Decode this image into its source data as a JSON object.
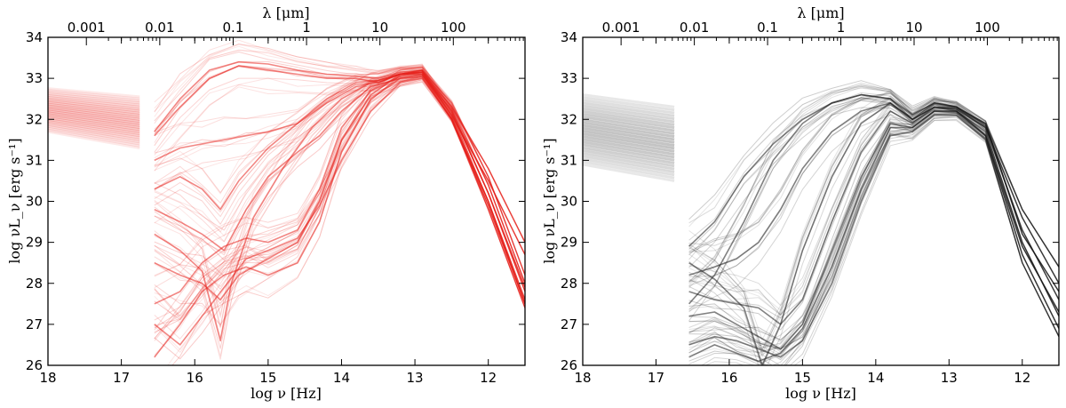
{
  "chart_data": [
    {
      "type": "line",
      "panel": "left",
      "color": "#e8231d",
      "xlabel": "log ν [Hz]",
      "ylabel": "log νL_ν [erg s⁻¹]",
      "top_xlabel": "λ [μm]",
      "xlim": [
        18,
        11.5
      ],
      "ylim": [
        26,
        34
      ],
      "x_ticks": [
        "18",
        "17",
        "16",
        "15",
        "14",
        "13",
        "12"
      ],
      "y_ticks": [
        "26",
        "27",
        "28",
        "29",
        "30",
        "31",
        "32",
        "33",
        "34"
      ],
      "top_ticks": [
        "0.001",
        "0.01",
        "0.1",
        "1",
        "10",
        "100"
      ],
      "xray_band": {
        "x": [
          18,
          16.75
        ],
        "y_left": [
          31.7,
          32.75
        ],
        "y_right": [
          31.3,
          32.55
        ]
      },
      "series": [
        {
          "x": [
            16.55,
            16.2,
            15.8,
            15.4,
            15.0,
            14.6,
            14.2,
            13.8,
            13.5,
            13.2,
            12.9,
            12.5,
            12.0,
            11.5
          ],
          "y": [
            31.7,
            32.5,
            33.2,
            33.4,
            33.35,
            33.2,
            33.1,
            33.05,
            33.0,
            33.15,
            33.2,
            32.3,
            30.8,
            29.0
          ]
        },
        {
          "x": [
            16.55,
            16.2,
            15.8,
            15.4,
            15.0,
            14.6,
            14.2,
            13.8,
            13.5,
            13.2,
            12.9,
            12.5,
            12.0,
            11.5
          ],
          "y": [
            31.6,
            32.3,
            33.0,
            33.3,
            33.2,
            33.1,
            33.0,
            33.0,
            32.9,
            33.1,
            33.15,
            32.1,
            30.5,
            28.7
          ]
        },
        {
          "x": [
            16.55,
            16.2,
            15.9,
            15.65,
            15.4,
            15.0,
            14.6,
            14.2,
            13.8,
            13.5,
            13.2,
            12.9,
            12.5,
            12.0,
            11.5
          ],
          "y": [
            30.3,
            30.6,
            30.3,
            29.8,
            30.5,
            31.3,
            31.9,
            32.5,
            32.9,
            32.95,
            33.1,
            33.1,
            32.0,
            30.0,
            27.5
          ]
        },
        {
          "x": [
            16.55,
            16.2,
            15.9,
            15.65,
            15.5,
            15.2,
            14.8,
            14.4,
            14.0,
            13.6,
            13.2,
            12.9,
            12.5,
            12.0,
            11.5
          ],
          "y": [
            29.2,
            28.8,
            28.3,
            26.6,
            28.0,
            29.6,
            30.8,
            31.8,
            32.5,
            32.9,
            33.1,
            33.2,
            32.2,
            30.2,
            27.9
          ]
        },
        {
          "x": [
            16.55,
            16.2,
            15.9,
            15.65,
            15.4,
            15.0,
            14.6,
            14.3,
            14.0,
            13.6,
            13.2,
            12.9,
            12.5,
            12.0,
            11.5
          ],
          "y": [
            28.5,
            28.2,
            28.0,
            27.6,
            28.2,
            28.6,
            29.0,
            30.0,
            31.5,
            32.6,
            33.1,
            33.2,
            32.4,
            30.6,
            28.2
          ]
        },
        {
          "x": [
            16.55,
            16.2,
            15.9,
            15.6,
            15.3,
            15.0,
            14.6,
            14.3,
            14.0,
            13.6,
            13.2,
            12.9,
            12.5,
            12.0,
            11.5
          ],
          "y": [
            27.5,
            27.8,
            28.5,
            28.9,
            29.1,
            29.0,
            29.3,
            30.3,
            31.8,
            32.7,
            33.05,
            33.15,
            32.3,
            30.4,
            28.0
          ]
        },
        {
          "x": [
            16.55,
            16.2,
            15.9,
            15.6,
            15.3,
            15.0,
            14.6,
            14.3,
            14.0,
            13.6,
            13.2,
            12.9,
            12.5,
            12.0,
            11.5
          ],
          "y": [
            26.2,
            27.0,
            27.8,
            28.2,
            28.4,
            28.2,
            28.5,
            29.5,
            31.2,
            32.5,
            33.0,
            33.1,
            32.1,
            30.0,
            27.6
          ]
        },
        {
          "x": [
            16.55,
            16.2,
            15.9,
            15.6,
            15.3,
            15.0,
            14.6,
            14.3,
            14.0,
            13.6,
            13.2,
            12.9,
            12.5,
            12.0,
            11.5
          ],
          "y": [
            29.8,
            29.5,
            29.2,
            28.8,
            29.8,
            30.6,
            31.2,
            31.6,
            32.2,
            32.8,
            33.0,
            33.05,
            32.0,
            29.9,
            27.5
          ]
        },
        {
          "x": [
            16.55,
            16.2,
            15.9,
            15.6,
            15.3,
            15.0,
            14.6,
            14.3,
            14.0,
            13.6,
            13.2,
            12.9,
            12.5,
            12.0,
            11.5
          ],
          "y": [
            27.0,
            26.5,
            27.2,
            27.9,
            28.6,
            28.8,
            29.1,
            29.9,
            31.0,
            32.2,
            32.9,
            33.0,
            32.0,
            29.8,
            27.4
          ]
        },
        {
          "x": [
            16.55,
            16.2,
            15.9,
            15.6,
            15.3,
            15.0,
            14.6,
            14.2,
            13.8,
            13.5,
            13.2,
            12.9,
            12.5,
            12.0,
            11.5
          ],
          "y": [
            31.0,
            31.3,
            31.4,
            31.5,
            31.6,
            31.7,
            31.9,
            32.4,
            32.8,
            32.9,
            33.1,
            33.15,
            32.2,
            30.2,
            27.8
          ]
        }
      ]
    },
    {
      "type": "line",
      "panel": "right",
      "color": "#1a1a1a",
      "xlabel": "log ν [Hz]",
      "ylabel": "log νL_ν [erg s⁻¹]",
      "top_xlabel": "λ [μm]",
      "xlim": [
        18,
        11.5
      ],
      "ylim": [
        26,
        34
      ],
      "x_ticks": [
        "18",
        "17",
        "16",
        "15",
        "14",
        "13",
        "12"
      ],
      "y_ticks": [
        "26",
        "27",
        "28",
        "29",
        "30",
        "31",
        "32",
        "33",
        "34"
      ],
      "top_ticks": [
        "0.001",
        "0.01",
        "0.1",
        "1",
        "10",
        "100"
      ],
      "xray_band": {
        "x": [
          18,
          16.75
        ],
        "y_left": [
          30.9,
          32.6
        ],
        "y_right": [
          30.5,
          32.3
        ]
      },
      "series": [
        {
          "x": [
            16.55,
            16.2,
            15.8,
            15.4,
            15.0,
            14.6,
            14.2,
            13.8,
            13.5,
            13.2,
            12.9,
            12.5,
            12.0,
            11.5
          ],
          "y": [
            28.9,
            29.5,
            30.6,
            31.4,
            32.0,
            32.4,
            32.6,
            32.5,
            32.1,
            32.4,
            32.3,
            31.9,
            29.2,
            27.8
          ]
        },
        {
          "x": [
            16.55,
            16.2,
            15.8,
            15.4,
            15.0,
            14.6,
            14.2,
            13.8,
            13.5,
            13.2,
            12.9,
            12.5,
            12.0,
            11.5
          ],
          "y": [
            27.5,
            28.2,
            29.5,
            31.0,
            31.9,
            32.4,
            32.6,
            32.5,
            32.0,
            32.4,
            32.3,
            31.8,
            29.6,
            28.0
          ]
        },
        {
          "x": [
            16.55,
            16.2,
            15.8,
            15.55,
            15.3,
            15.0,
            14.6,
            14.2,
            13.8,
            13.5,
            13.2,
            12.9,
            12.5,
            12.0,
            11.5
          ],
          "y": [
            28.5,
            28.1,
            27.4,
            26.0,
            27.0,
            28.8,
            30.6,
            31.9,
            32.4,
            32.0,
            32.3,
            32.25,
            31.8,
            29.3,
            27.6
          ]
        },
        {
          "x": [
            16.55,
            16.2,
            15.9,
            15.6,
            15.3,
            15.0,
            14.6,
            14.2,
            13.8,
            13.5,
            13.2,
            12.9,
            12.5,
            12.0,
            11.5
          ],
          "y": [
            27.8,
            27.6,
            27.5,
            27.4,
            27.0,
            27.6,
            29.5,
            31.2,
            32.2,
            31.9,
            32.3,
            32.2,
            31.7,
            29.0,
            27.2
          ]
        },
        {
          "x": [
            16.55,
            16.2,
            15.9,
            15.6,
            15.3,
            15.0,
            14.6,
            14.2,
            13.8,
            13.5,
            13.2,
            12.9,
            12.5,
            12.0,
            11.5
          ],
          "y": [
            27.2,
            27.3,
            27.0,
            26.7,
            26.4,
            27.0,
            28.8,
            30.6,
            31.9,
            31.8,
            32.2,
            32.2,
            31.6,
            28.7,
            26.9
          ]
        },
        {
          "x": [
            16.55,
            16.2,
            15.9,
            15.6,
            15.3,
            15.0,
            14.6,
            14.2,
            13.8,
            13.5,
            13.2,
            12.9,
            12.5,
            12.0,
            11.5
          ],
          "y": [
            26.5,
            26.7,
            26.6,
            26.4,
            26.2,
            26.6,
            28.0,
            30.0,
            31.6,
            31.7,
            32.1,
            32.1,
            31.5,
            28.5,
            26.7
          ]
        },
        {
          "x": [
            16.55,
            16.2,
            15.9,
            15.6,
            15.3,
            15.0,
            14.6,
            14.2,
            13.8,
            13.5,
            13.2,
            12.9,
            12.5,
            12.0,
            11.5
          ],
          "y": [
            28.2,
            28.4,
            28.6,
            29.0,
            29.8,
            30.8,
            31.7,
            32.2,
            32.4,
            32.0,
            32.3,
            32.3,
            31.9,
            29.8,
            28.4
          ]
        },
        {
          "x": [
            16.55,
            16.2,
            15.9,
            15.6,
            15.3,
            15.0,
            14.6,
            14.2,
            13.8,
            13.5,
            13.2,
            12.9,
            12.5,
            12.0,
            11.5
          ],
          "y": [
            26.2,
            26.5,
            26.3,
            26.1,
            26.3,
            26.9,
            28.4,
            30.3,
            31.8,
            31.8,
            32.2,
            32.2,
            31.6,
            28.9,
            27.3
          ]
        }
      ]
    }
  ]
}
